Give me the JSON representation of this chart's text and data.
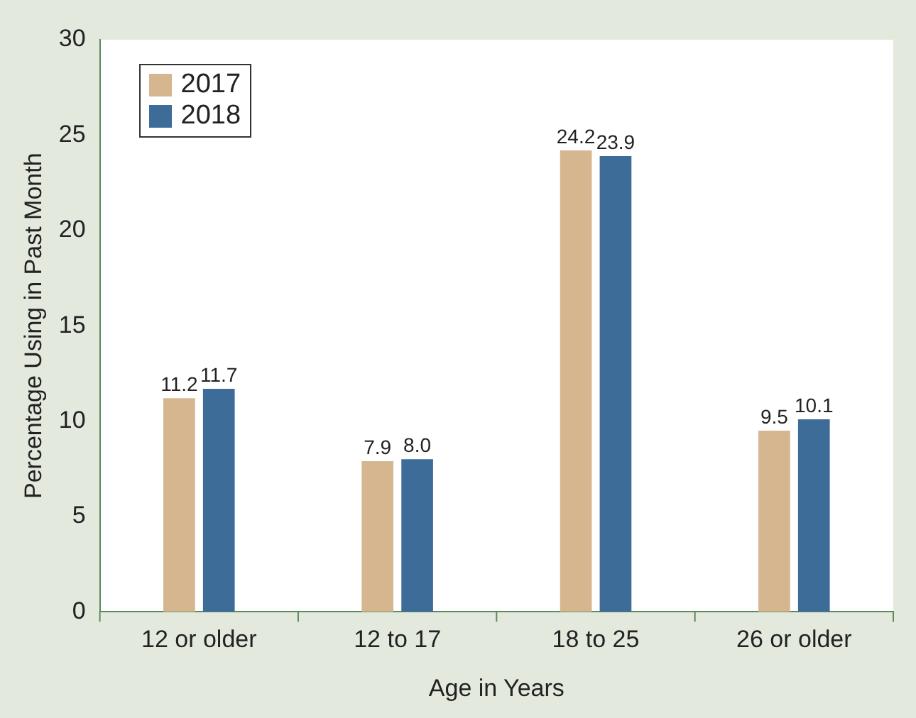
{
  "chart_data": {
    "type": "bar",
    "xlabel": "Age in Years",
    "ylabel": "Percentage Using in Past Month",
    "categories": [
      "12 or older",
      "12 to 17",
      "18 to 25",
      "26 or older"
    ],
    "series": [
      {
        "name": "2017",
        "color": "#d5b68e",
        "values": [
          11.2,
          7.9,
          24.2,
          9.5
        ],
        "value_labels": [
          "11.2",
          "7.9",
          "24.2",
          "9.5"
        ]
      },
      {
        "name": "2018",
        "color": "#3e6c99",
        "values": [
          11.7,
          8.0,
          23.9,
          10.1
        ],
        "value_labels": [
          "11.7",
          "8.0",
          "23.9",
          "10.1"
        ]
      }
    ],
    "ylim": [
      0,
      30
    ],
    "yticks": [
      0,
      5,
      10,
      15,
      20,
      25,
      30
    ],
    "grid": false,
    "legend": "top left"
  }
}
